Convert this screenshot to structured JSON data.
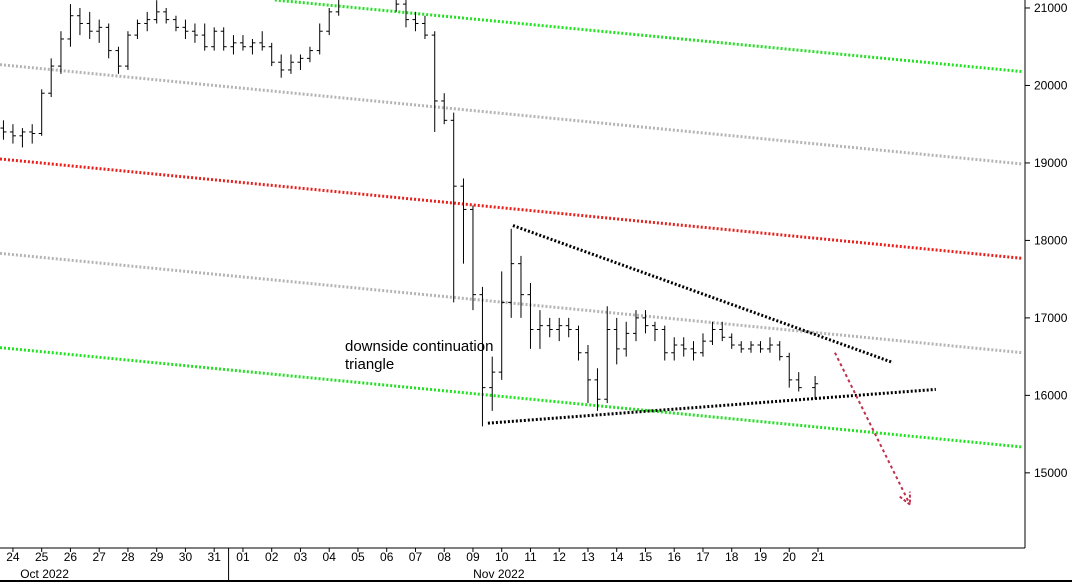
{
  "chart_data": {
    "type": "ohlc",
    "annotation": "downside continuation triangle",
    "x": [
      -0.33,
      0,
      0.33,
      0.67,
      1,
      1.33,
      1.67,
      2,
      2.33,
      2.67,
      3,
      3.33,
      3.67,
      4,
      4.33,
      4.67,
      5,
      5.33,
      5.67,
      6,
      6.33,
      6.67,
      7,
      7.33,
      7.67,
      8,
      8.33,
      8.67,
      9,
      9.33,
      9.67,
      10,
      10.33,
      10.67,
      11,
      11.33,
      11.67,
      12,
      12.33,
      12.67,
      13,
      13.33,
      13.67,
      14,
      14.33,
      14.67,
      15,
      15.33,
      15.67,
      16,
      16.33,
      16.67,
      17,
      17.33,
      17.67,
      18,
      18.33,
      18.67,
      19,
      19.33,
      19.67,
      20,
      20.33,
      20.67,
      21,
      21.33,
      21.67,
      22,
      22.33,
      22.67,
      23,
      23.33,
      23.67,
      24,
      24.33,
      24.67,
      25,
      25.33,
      25.67,
      26,
      26.33,
      26.67,
      27,
      27.33,
      27.9
    ],
    "open": [
      19450,
      19400,
      19350,
      19400,
      19380,
      19900,
      20250,
      20600,
      20900,
      20800,
      20700,
      20750,
      20450,
      20250,
      20650,
      20800,
      20850,
      20950,
      20850,
      20750,
      20700,
      20650,
      20500,
      20700,
      20500,
      20550,
      20500,
      20550,
      20500,
      20300,
      20200,
      20300,
      20350,
      20450,
      20700,
      20950,
      21200,
      21300,
      21350,
      21300,
      21250,
      21200,
      21050,
      20850,
      20800,
      20650,
      19800,
      19550,
      18700,
      18400,
      17300,
      16100,
      16300,
      17200,
      17700,
      17300,
      16850,
      16900,
      16850,
      16900,
      16850,
      16550,
      16200,
      15950,
      16850,
      16600,
      16800,
      17000,
      16900,
      16850,
      16550,
      16650,
      16600,
      16550,
      16700,
      16850,
      16750,
      16650,
      16600,
      16650,
      16600,
      16650,
      16500,
      16200,
      16100
    ],
    "high": [
      19550,
      19500,
      19450,
      19500,
      19950,
      20350,
      20700,
      21050,
      21000,
      20950,
      20850,
      20800,
      20500,
      20700,
      20850,
      20950,
      21100,
      21000,
      20900,
      20850,
      20800,
      20800,
      20750,
      20750,
      20650,
      20650,
      20600,
      20700,
      20550,
      20400,
      20400,
      20400,
      20500,
      20800,
      21000,
      21250,
      21400,
      21450,
      21400,
      21400,
      21350,
      21250,
      21150,
      20950,
      20900,
      20700,
      19900,
      19650,
      18800,
      18450,
      17400,
      16500,
      17600,
      18150,
      17800,
      17450,
      17100,
      17000,
      17000,
      17000,
      16900,
      16650,
      16350,
      17150,
      17000,
      16950,
      17100,
      17100,
      16950,
      16900,
      16750,
      16750,
      16700,
      16800,
      16950,
      16950,
      16800,
      16700,
      16700,
      16700,
      16750,
      16700,
      16550,
      16300,
      16250
    ],
    "low": [
      19300,
      19250,
      19200,
      19250,
      19350,
      19850,
      20150,
      20500,
      20650,
      20600,
      20550,
      20350,
      20150,
      20200,
      20600,
      20700,
      20800,
      20800,
      20700,
      20600,
      20550,
      20450,
      20450,
      20450,
      20400,
      20450,
      20400,
      20450,
      20250,
      20100,
      20150,
      20200,
      20300,
      20400,
      20650,
      20900,
      21150,
      21200,
      21250,
      21200,
      21150,
      20950,
      20750,
      20700,
      20600,
      19400,
      19500,
      17200,
      17700,
      17100,
      15600,
      15800,
      16200,
      17000,
      17000,
      16600,
      16600,
      16750,
      16700,
      16750,
      16450,
      15900,
      15800,
      15900,
      16400,
      16500,
      16700,
      16800,
      16700,
      16450,
      16450,
      16500,
      16450,
      16500,
      16650,
      16700,
      16600,
      16550,
      16550,
      16550,
      16550,
      16450,
      16100,
      16050,
      15950
    ],
    "close": [
      19400,
      19350,
      19400,
      19380,
      19900,
      20250,
      20600,
      20900,
      20800,
      20700,
      20750,
      20450,
      20250,
      20650,
      20800,
      20850,
      20950,
      20850,
      20750,
      20700,
      20650,
      20500,
      20700,
      20500,
      20550,
      20500,
      20550,
      20500,
      20300,
      20200,
      20300,
      20350,
      20450,
      20700,
      20950,
      21200,
      21300,
      21350,
      21300,
      21250,
      21200,
      21050,
      20850,
      20800,
      20650,
      19800,
      19550,
      18700,
      18400,
      17300,
      16100,
      16300,
      17200,
      17700,
      17300,
      16850,
      16900,
      16850,
      16900,
      16850,
      16550,
      16200,
      15950,
      16850,
      16600,
      16800,
      17000,
      16900,
      16850,
      16550,
      16650,
      16600,
      16550,
      16700,
      16850,
      16750,
      16650,
      16600,
      16650,
      16600,
      16650,
      16500,
      16200,
      16100,
      16150
    ],
    "lines": [
      {
        "color": "#22e022",
        "x": [
          9.11,
          35.1
        ],
        "y": [
          21103,
          20179
        ]
      },
      {
        "color": "#b4b4b4",
        "x": [
          -0.45,
          35.1
        ],
        "y": [
          20269,
          18987
        ]
      },
      {
        "color": "#e8201c",
        "x": [
          -0.45,
          35.1
        ],
        "y": [
          19051,
          17769
        ]
      },
      {
        "color": "#b4b4b4",
        "x": [
          -0.45,
          35.1
        ],
        "y": [
          17833,
          16551
        ]
      },
      {
        "color": "#22e022",
        "x": [
          -0.45,
          35.1
        ],
        "y": [
          16616,
          15334
        ]
      },
      {
        "color": "#000000",
        "x": [
          17.39,
          30.61
        ],
        "y": [
          18192,
          16423
        ]
      },
      {
        "color": "#000000",
        "x": [
          16.52,
          32.1
        ],
        "y": [
          15641,
          16077
        ]
      }
    ],
    "arrow": {
      "color": "#c0304a",
      "x": [
        28.59,
        31.2
      ],
      "y": [
        16551,
        14590
      ]
    },
    "xlim": [
      -0.45,
      35.2
    ],
    "ylim": [
      14030,
      21103
    ],
    "yticks": [
      {
        "value": 15000,
        "label": "15000"
      },
      {
        "value": 16000,
        "label": "16000"
      },
      {
        "value": 17000,
        "label": "17000"
      },
      {
        "value": 18000,
        "label": "18000"
      },
      {
        "value": 19000,
        "label": "19000"
      },
      {
        "value": 20000,
        "label": "20000"
      },
      {
        "value": 21000,
        "label": "21000"
      }
    ],
    "xticks": [
      {
        "value": 0,
        "label": "24"
      },
      {
        "value": 1,
        "label": "25"
      },
      {
        "value": 2,
        "label": "26"
      },
      {
        "value": 3,
        "label": "27"
      },
      {
        "value": 4,
        "label": "28"
      },
      {
        "value": 5,
        "label": "29"
      },
      {
        "value": 6,
        "label": "30"
      },
      {
        "value": 7,
        "label": "31"
      },
      {
        "value": 8,
        "label": "01"
      },
      {
        "value": 9,
        "label": "02"
      },
      {
        "value": 10,
        "label": "03"
      },
      {
        "value": 11,
        "label": "04"
      },
      {
        "value": 12,
        "label": "05"
      },
      {
        "value": 13,
        "label": "06"
      },
      {
        "value": 14,
        "label": "07"
      },
      {
        "value": 15,
        "label": "08"
      },
      {
        "value": 16,
        "label": "09"
      },
      {
        "value": 17,
        "label": "10"
      },
      {
        "value": 18,
        "label": "11"
      },
      {
        "value": 19,
        "label": "12"
      },
      {
        "value": 20,
        "label": "13"
      },
      {
        "value": 21,
        "label": "14"
      },
      {
        "value": 22,
        "label": "15"
      },
      {
        "value": 23,
        "label": "16"
      },
      {
        "value": 24,
        "label": "17"
      },
      {
        "value": 25,
        "label": "18"
      },
      {
        "value": 26,
        "label": "19"
      },
      {
        "value": 27,
        "label": "20"
      },
      {
        "value": 28,
        "label": "21"
      }
    ],
    "months": [
      {
        "value": 1.1,
        "label": "Oct 2022"
      },
      {
        "value": 16.9,
        "label": "Nov 2022"
      }
    ],
    "month_start": [
      7.5
    ]
  }
}
